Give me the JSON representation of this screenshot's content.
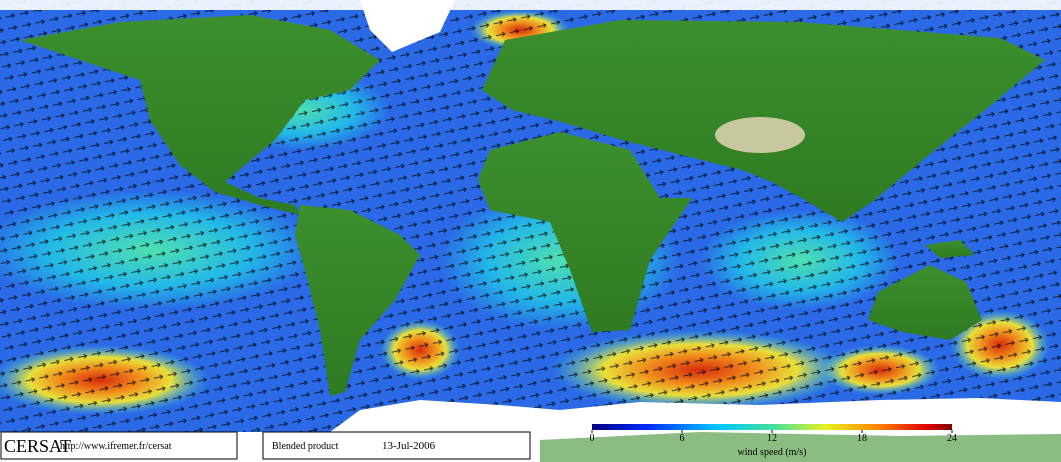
{
  "header": {
    "logo": "CERSAT",
    "url": "http://www.ifremer.fr/cersat"
  },
  "product": {
    "name": "Blended product",
    "date": "13-Jul-2006"
  },
  "colorbar": {
    "label": "wind speed (m/s)",
    "lim": [
      0,
      24
    ],
    "ticks": [
      0,
      6,
      12,
      18,
      24
    ]
  }
}
